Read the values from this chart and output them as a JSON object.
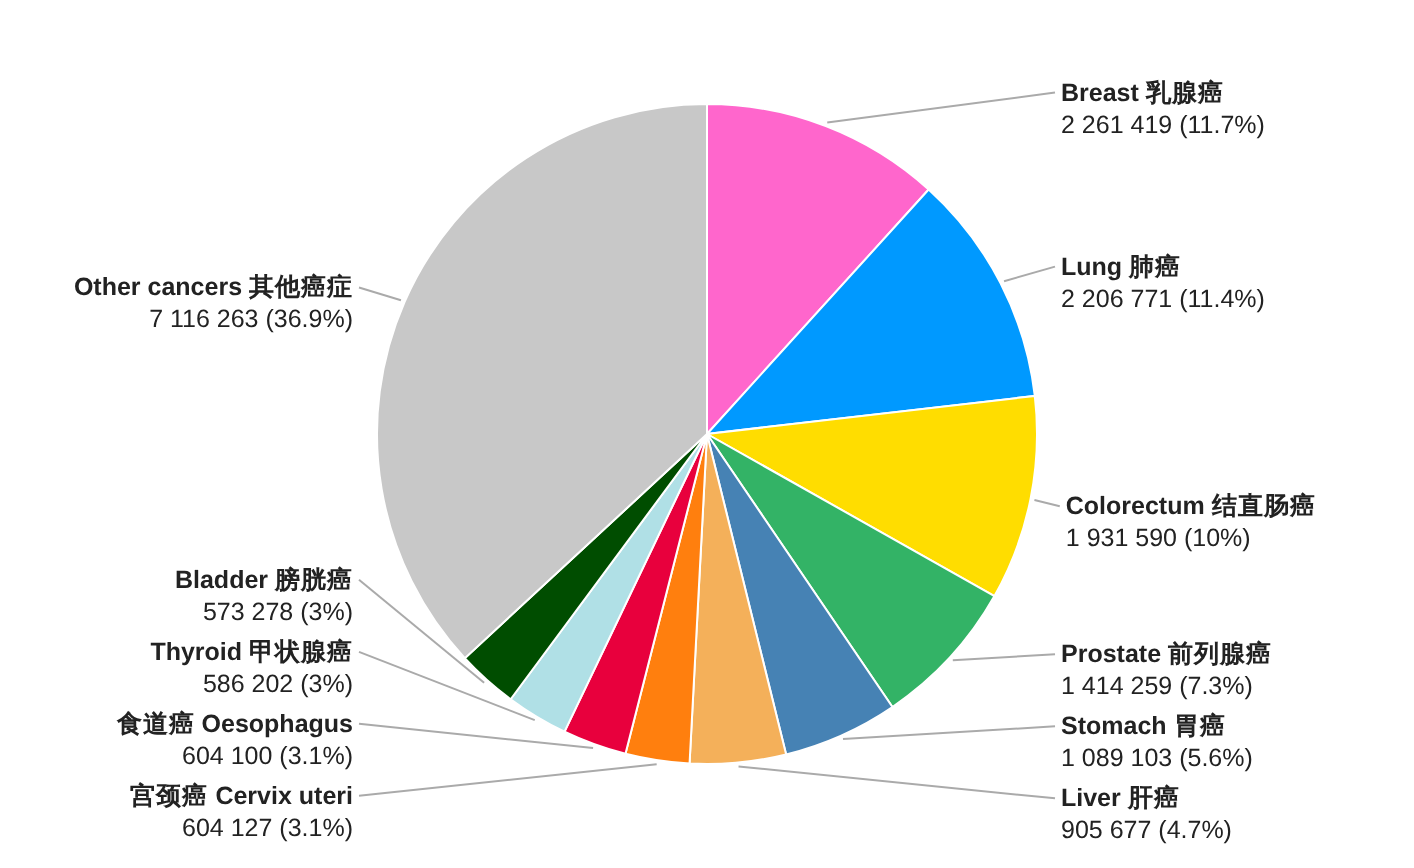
{
  "chart_data": {
    "type": "pie",
    "categories": [
      "Breast 乳腺癌",
      "Lung 肺癌",
      "Colorectum 结直肠癌",
      "Prostate 前列腺癌",
      "Stomach 胃癌",
      "Liver 肝癌",
      "宫颈癌 Cervix uteri",
      "食道癌 Oesophagus",
      "Thyroid 甲状腺癌",
      "Bladder 膀胱癌",
      "Other cancers 其他癌症"
    ],
    "values": [
      2261419,
      2206771,
      1931590,
      1414259,
      1089103,
      905677,
      604127,
      604100,
      586202,
      573278,
      7116263
    ],
    "value_labels": [
      "2 261 419 (11.7%)",
      "2 206 771 (11.4%)",
      "1 931 590 (10%)",
      "1 414 259 (7.3%)",
      "1 089 103 (5.6%)",
      "905 677 (4.7%)",
      "604 127 (3.1%)",
      "604 100 (3.1%)",
      "586 202 (3%)",
      "573 278 (3%)",
      "7 116 263 (36.9%)"
    ],
    "colors": [
      "#ff66cc",
      "#0099ff",
      "#ffdd00",
      "#33b366",
      "#4682b4",
      "#f4b05a",
      "#ff7f0e",
      "#e8003d",
      "#b0e0e6",
      "#004d00",
      "#c8c8c8"
    ]
  }
}
